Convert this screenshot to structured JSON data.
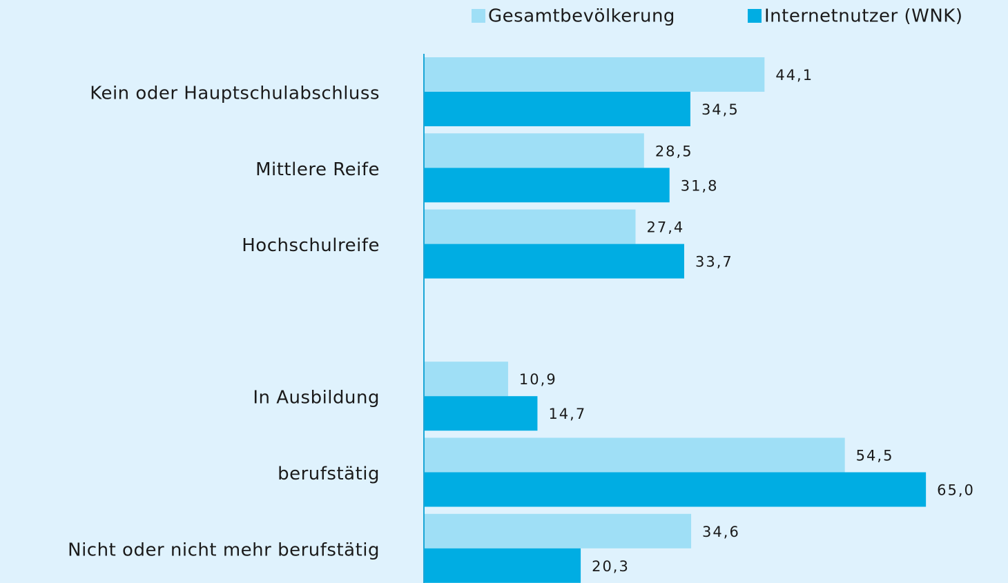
{
  "chart_data": {
    "type": "bar",
    "orientation": "horizontal",
    "categories": [
      "Kein oder Hauptschulabschluss",
      "Mittlere Reife",
      "Hochschulreife",
      null,
      "In Ausbildung",
      "berufstätig",
      "Nicht oder nicht mehr berufstätig"
    ],
    "series": [
      {
        "name": "Gesamtbevölkerung",
        "color": "#9fdff6",
        "values": [
          44.1,
          28.5,
          27.4,
          null,
          10.9,
          54.5,
          34.6
        ],
        "value_labels": [
          "44,1",
          "28,5",
          "27,4",
          null,
          "10,9",
          "54,5",
          "34,6"
        ]
      },
      {
        "name": "Internetnutzer (WNK)",
        "color": "#00ade3",
        "values": [
          34.5,
          31.8,
          33.7,
          null,
          14.7,
          65.0,
          20.3
        ],
        "value_labels": [
          "34,5",
          "31,8",
          "33,7",
          null,
          "14,7",
          "65,0",
          "20,3"
        ]
      }
    ],
    "xlim": [
      0,
      75
    ],
    "legend": "top-right"
  }
}
